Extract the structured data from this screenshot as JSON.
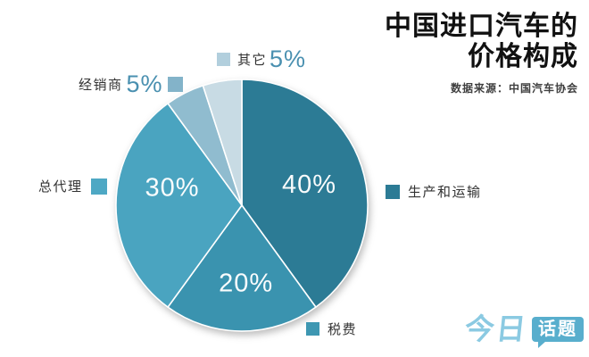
{
  "title": {
    "line1": "中国进口汽车的",
    "line2": "价格构成",
    "source": "数据来源：中国汽车协会"
  },
  "chart_data": {
    "type": "pie",
    "title": "中国进口汽车的价格构成",
    "unit": "percent",
    "direction": "clockwise",
    "start_angle_deg": 0,
    "inside_label_color": "#ffffff",
    "pct_text_color": "#4a90b0",
    "slices": [
      {
        "label": "生产和运输",
        "value": 40,
        "pct_label": "40%",
        "color": "#2c7b95",
        "legend_color": "#2c7b95",
        "pct_position": "inside"
      },
      {
        "label": "税费",
        "value": 20,
        "pct_label": "20%",
        "color": "#3a93af",
        "legend_color": "#3e97b2",
        "pct_position": "inside"
      },
      {
        "label": "总代理",
        "value": 30,
        "pct_label": "30%",
        "color": "#4aa4c0",
        "legend_color": "#4ea8c4",
        "pct_position": "inside"
      },
      {
        "label": "经销商",
        "value": 5,
        "pct_label": "5%",
        "color": "#90bccf",
        "legend_color": "#83b3c9",
        "pct_position": "outside"
      },
      {
        "label": "其它",
        "value": 5,
        "pct_label": "5%",
        "color": "#c8dbe4",
        "legend_color": "#b2cfdd",
        "pct_position": "outside"
      }
    ]
  },
  "logo": {
    "text": "今日",
    "badge": "话题",
    "text_color": "#8bcae2",
    "badge_color": "#58aecd"
  }
}
